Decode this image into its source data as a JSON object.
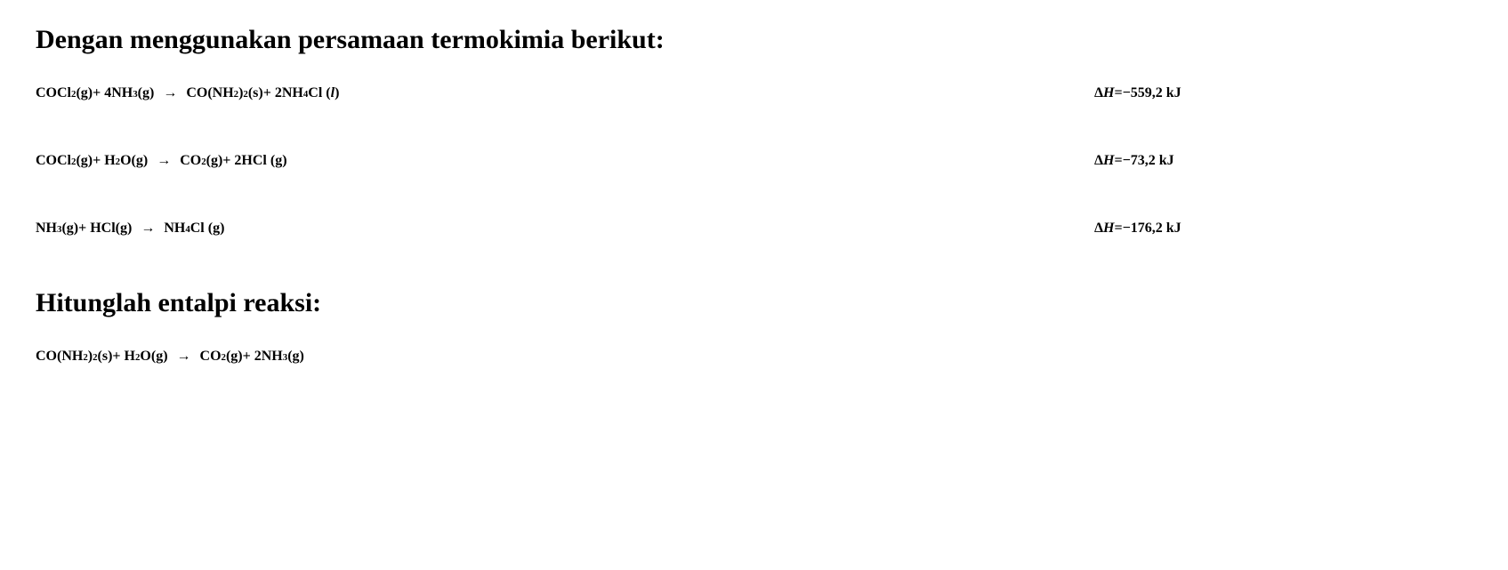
{
  "intro": "Dengan menggunakan persamaan termokimia berikut:",
  "calc": "Hitunglah entalpi reaksi:",
  "arrow": "→",
  "rows": [
    {
      "lhs_a": "COCl",
      "lhs_a_sub": "2",
      "lhs_a_state": "(g)",
      "plus1": " + 4NH",
      "plus1_sub": "3",
      "plus1_state": "(g)",
      "rhs_a": "CO(NH",
      "rhs_a_sub": "2",
      "rhs_a_paren": ")",
      "rhs_a_sub2": "2",
      "rhs_a_state": "(s)",
      "plus2": " + 2NH",
      "plus2_sub": "4",
      "plus2_tail": "Cl (",
      "plus2_state_it": "l",
      "plus2_close": ")",
      "dH_label_delta": "Δ",
      "dH_label_H": "H",
      "dH_eq": " = ",
      "dH_val": "−559,2 kJ"
    },
    {
      "lhs_a": "COCl",
      "lhs_a_sub": "2",
      "lhs_a_state": "(g)",
      "plus1": " + H",
      "plus1_sub": "2",
      "plus1_state": "O(g)",
      "rhs_a": "CO",
      "rhs_a_sub": "2",
      "rhs_a_paren": "",
      "rhs_a_sub2": "",
      "rhs_a_state": "(g)",
      "plus2": " + 2HCl (g)",
      "plus2_sub": "",
      "plus2_tail": "",
      "plus2_state_it": "",
      "plus2_close": "",
      "dH_label_delta": "Δ",
      "dH_label_H": "H",
      "dH_eq": " = ",
      "dH_val": "−73,2 kJ"
    },
    {
      "lhs_a": "NH",
      "lhs_a_sub": "3",
      "lhs_a_state": "(g)",
      "plus1": " + HCl(g)",
      "plus1_sub": "",
      "plus1_state": "",
      "rhs_a": "NH",
      "rhs_a_sub": "4",
      "rhs_a_paren": "",
      "rhs_a_sub2": "",
      "rhs_a_state": "Cl (g)",
      "plus2": "",
      "plus2_sub": "",
      "plus2_tail": "",
      "plus2_state_it": "",
      "plus2_close": "",
      "dH_label_delta": "Δ",
      "dH_label_H": "H",
      "dH_eq": " = ",
      "dH_val": "−176,2 kJ"
    }
  ],
  "target": {
    "lhs_a": "CO(NH",
    "lhs_a_sub": "2",
    "lhs_a_paren": ")",
    "lhs_a_sub2": "2",
    "lhs_a_state": "(s)",
    "plus1": " + H",
    "plus1_sub": "2",
    "plus1_state": "O(g)",
    "rhs_a": "CO",
    "rhs_a_sub": "2",
    "rhs_a_state": "(g)",
    "plus2": " + 2NH",
    "plus2_sub": "3",
    "plus2_state": " (g)"
  }
}
